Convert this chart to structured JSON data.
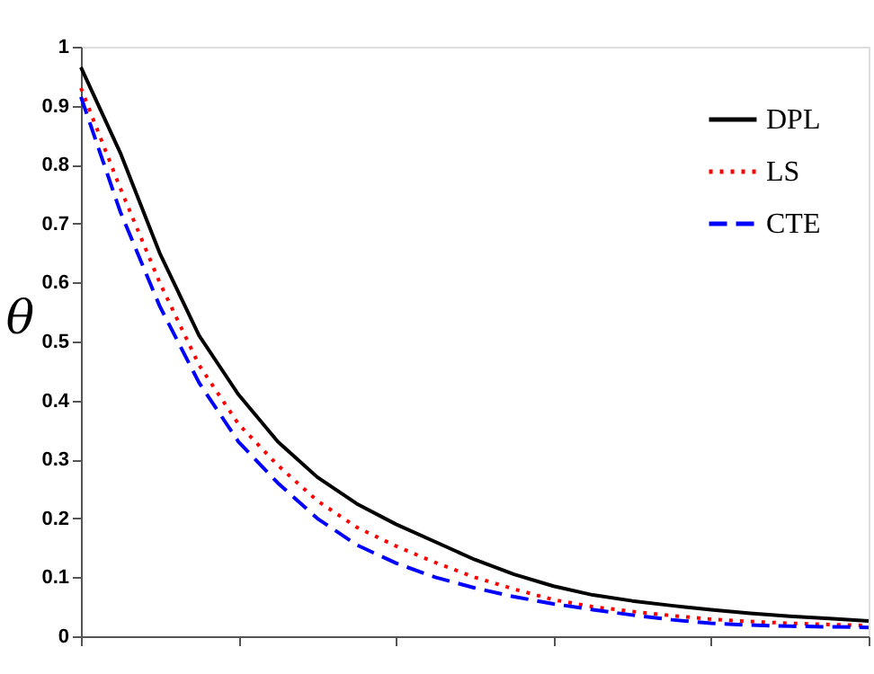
{
  "chart_data": {
    "type": "line",
    "ylabel": "θ",
    "categories": [
      null,
      null,
      null,
      null,
      null,
      null,
      null,
      null,
      null,
      null,
      null,
      null,
      null,
      null,
      null,
      null,
      null,
      null,
      null,
      null,
      null
    ],
    "ylim": [
      0,
      1
    ],
    "yticks": [
      0,
      0.1,
      0.2,
      0.3,
      0.4,
      0.5,
      0.6,
      0.7,
      0.8,
      0.9,
      1
    ],
    "grid": false,
    "legend": "top right",
    "marker": "none",
    "series": [
      {
        "name": "DPL",
        "color": "#000000",
        "line_style": "solid",
        "values": [
          0.965,
          0.82,
          0.65,
          0.51,
          0.41,
          0.33,
          0.27,
          0.225,
          0.19,
          0.16,
          0.13,
          0.105,
          0.085,
          0.07,
          0.06,
          0.052,
          0.045,
          0.039,
          0.034,
          0.03,
          0.026
        ]
      },
      {
        "name": "LS",
        "color": "#ff0000",
        "line_style": "dotted",
        "values": [
          0.93,
          0.76,
          0.6,
          0.46,
          0.36,
          0.29,
          0.23,
          0.185,
          0.153,
          0.125,
          0.1,
          0.08,
          0.062,
          0.05,
          0.042,
          0.035,
          0.029,
          0.025,
          0.022,
          0.02,
          0.018
        ]
      },
      {
        "name": "CTE",
        "color": "#0000ff",
        "line_style": "dashed",
        "values": [
          0.915,
          0.72,
          0.56,
          0.43,
          0.33,
          0.26,
          0.2,
          0.155,
          0.124,
          0.1,
          0.082,
          0.067,
          0.055,
          0.045,
          0.036,
          0.028,
          0.022,
          0.019,
          0.017,
          0.016,
          0.015
        ]
      }
    ]
  }
}
